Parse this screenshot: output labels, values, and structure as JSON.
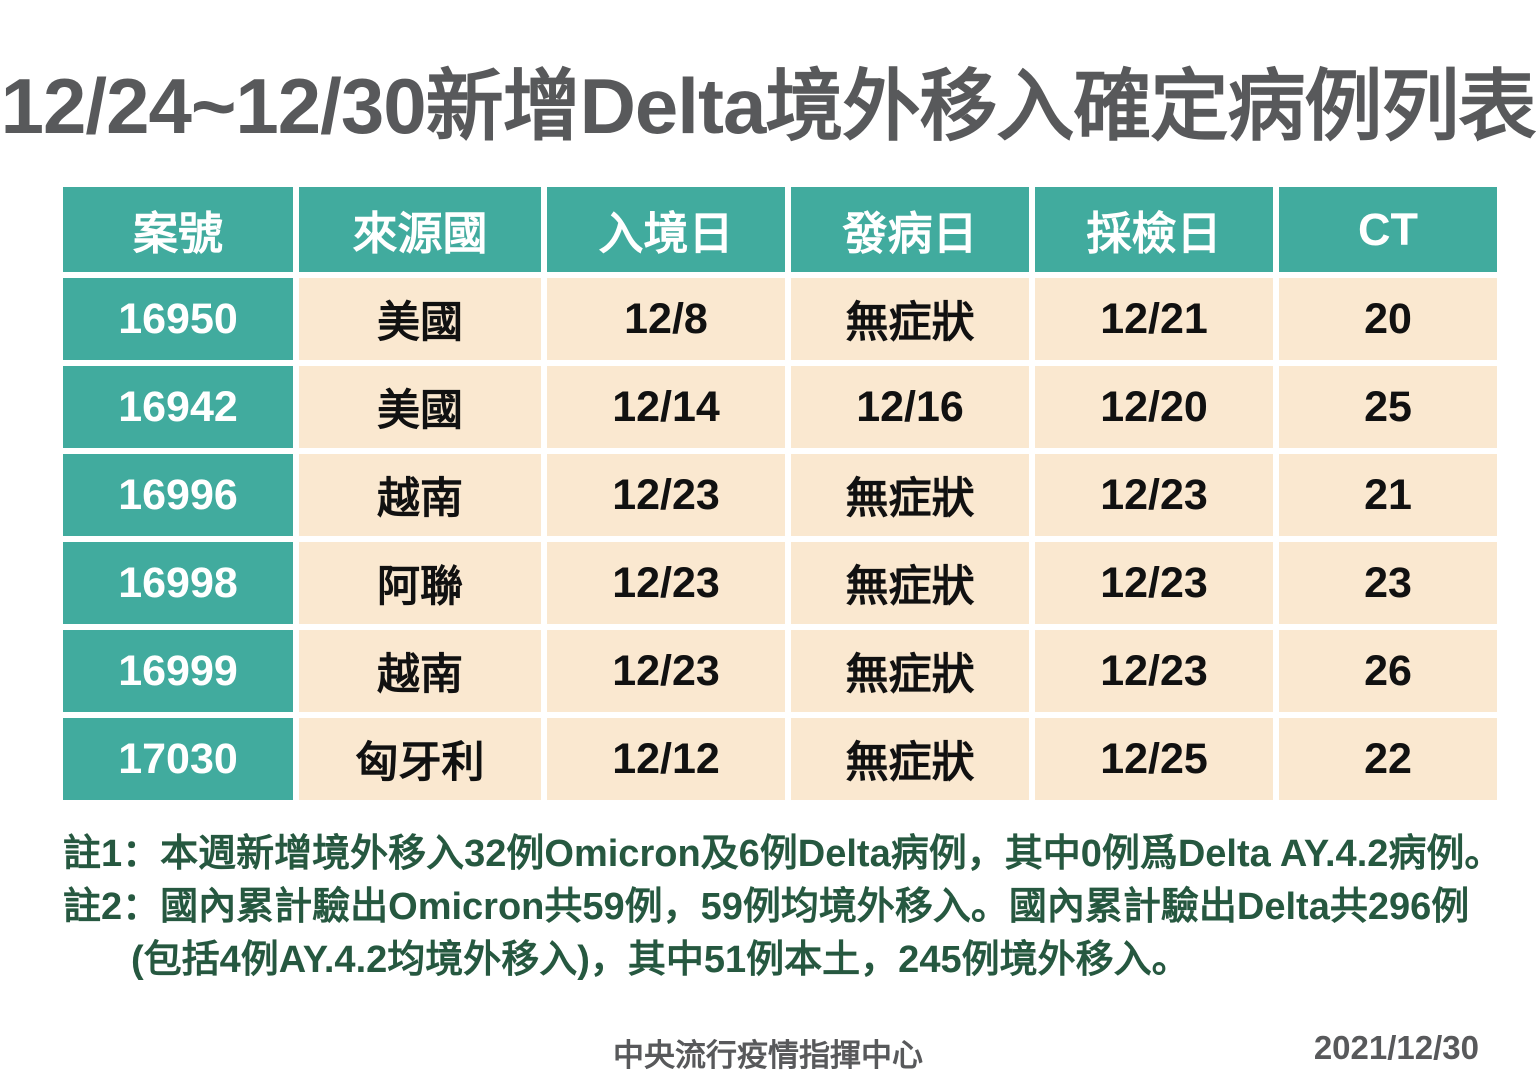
{
  "title": "12/24~12/30新增Delta境外移入確定病例列表",
  "table": {
    "headers": [
      "案號",
      "來源國",
      "入境日",
      "發病日",
      "採檢日",
      "CT"
    ],
    "rows": [
      [
        "16950",
        "美國",
        "12/8",
        "無症狀",
        "12/21",
        "20"
      ],
      [
        "16942",
        "美國",
        "12/14",
        "12/16",
        "12/20",
        "25"
      ],
      [
        "16996",
        "越南",
        "12/23",
        "無症狀",
        "12/23",
        "21"
      ],
      [
        "16998",
        "阿聯",
        "12/23",
        "無症狀",
        "12/23",
        "23"
      ],
      [
        "16999",
        "越南",
        "12/23",
        "無症狀",
        "12/23",
        "26"
      ],
      [
        "17030",
        "匈牙利",
        "12/12",
        "無症狀",
        "12/25",
        "22"
      ]
    ]
  },
  "chart_data": {
    "type": "table",
    "title": "12/24~12/30新增Delta境外移入確定病例列表",
    "columns": [
      "案號",
      "來源國",
      "入境日",
      "發病日",
      "採檢日",
      "CT"
    ],
    "rows": [
      [
        "16950",
        "美國",
        "12/8",
        "無症狀",
        "12/21",
        "20"
      ],
      [
        "16942",
        "美國",
        "12/14",
        "12/16",
        "12/20",
        "25"
      ],
      [
        "16996",
        "越南",
        "12/23",
        "無症狀",
        "12/23",
        "21"
      ],
      [
        "16998",
        "阿聯",
        "12/23",
        "無症狀",
        "12/23",
        "23"
      ],
      [
        "16999",
        "越南",
        "12/23",
        "無症狀",
        "12/23",
        "26"
      ],
      [
        "17030",
        "匈牙利",
        "12/12",
        "無症狀",
        "12/25",
        "22"
      ]
    ]
  },
  "notes": {
    "note1": "註1：本週新增境外移入32例Omicron及6例Delta病例，其中0例爲Delta AY.4.2病例。",
    "note2_line1": "註2：國內累計驗出Omicron共59例，59例均境外移入。國內累計驗出Delta共296例",
    "note2_line2": "(包括4例AY.4.2均境外移入)，其中51例本土，245例境外移入。"
  },
  "footer": {
    "org": "中央流行疫情指揮中心",
    "date": "2021/12/30"
  },
  "colors": {
    "teal": "#41AB9E",
    "cream": "#FAE8D0",
    "note_green": "#265840",
    "title_gray": "#58595B"
  }
}
